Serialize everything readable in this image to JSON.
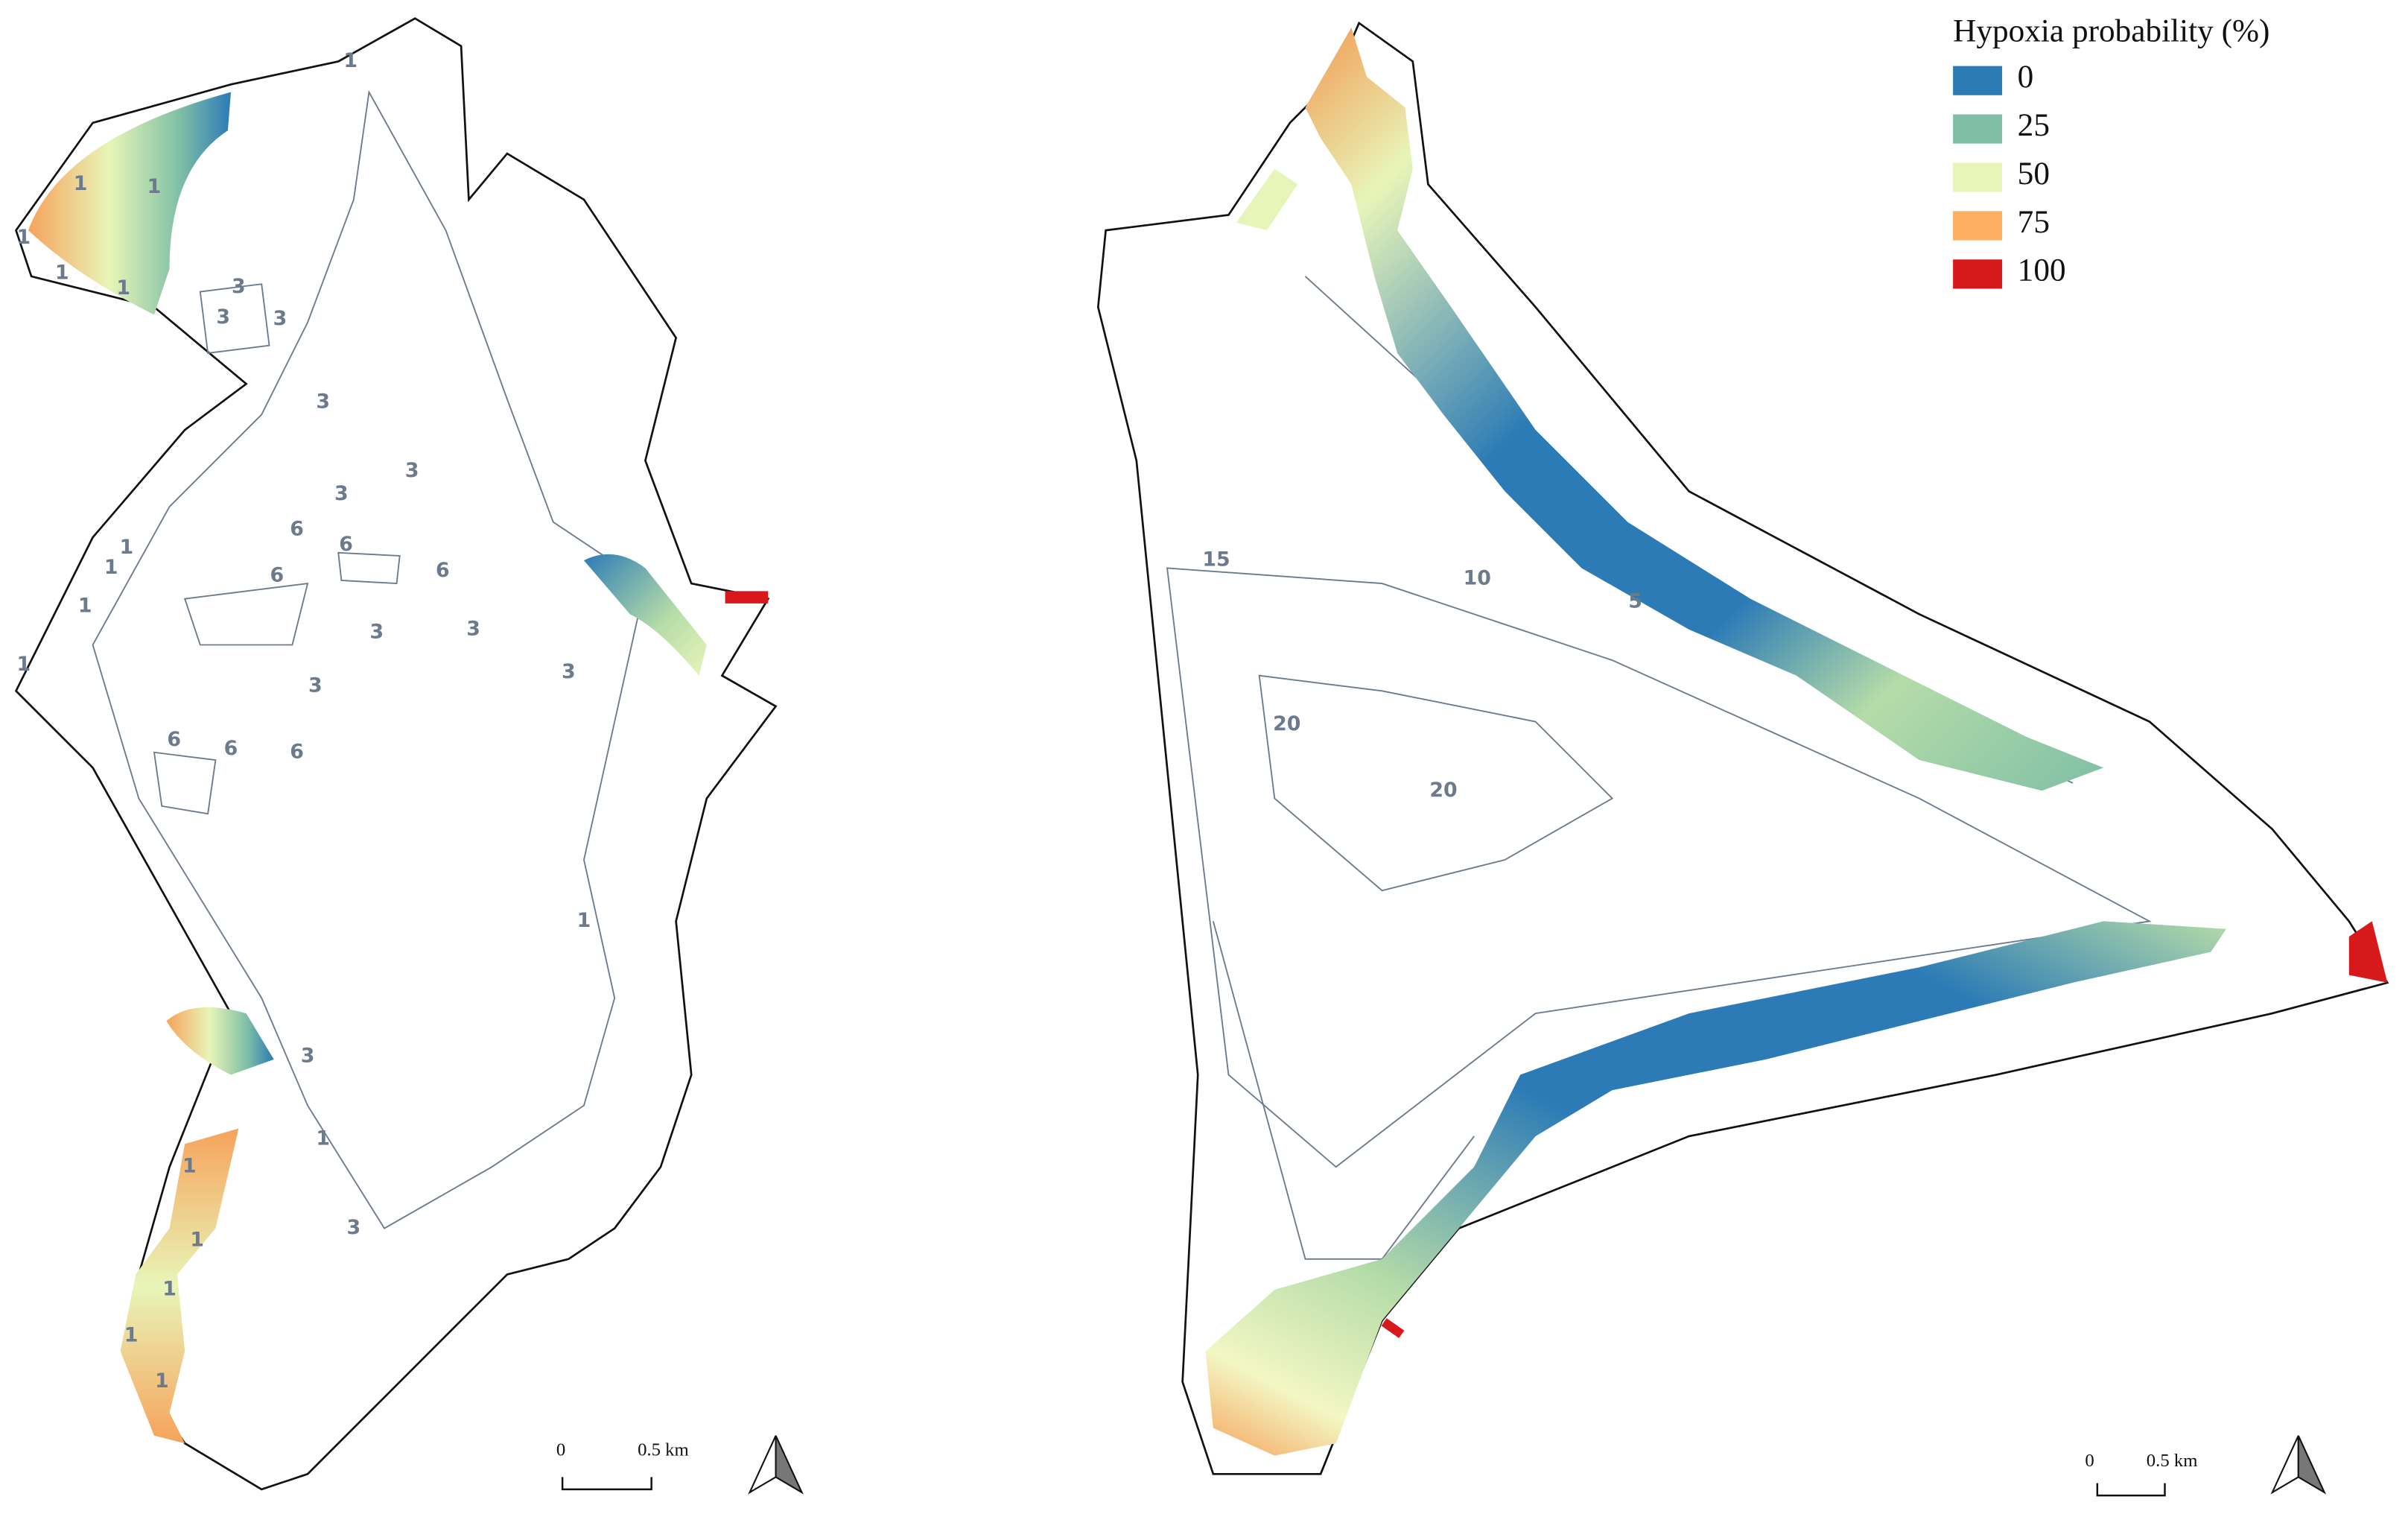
{
  "map": {
    "legend": {
      "title": "Hypoxia probability (%)",
      "items": [
        {
          "label": "0",
          "color": "#2c7bb6"
        },
        {
          "label": "25",
          "color": "#7fbfa6"
        },
        {
          "label": "50",
          "color": "#e8f5b8"
        },
        {
          "label": "75",
          "color": "#fdae61"
        },
        {
          "label": "100",
          "color": "#d7191c"
        }
      ]
    },
    "contour_labels": {
      "left": [
        "1",
        "1",
        "1",
        "1",
        "1",
        "1",
        "1",
        "1",
        "1",
        "1",
        "1",
        "1",
        "1",
        "1",
        "1",
        "1",
        "1",
        "3",
        "3",
        "3",
        "3",
        "3",
        "3",
        "3",
        "3",
        "3",
        "3",
        "3",
        "3",
        "6",
        "6",
        "6",
        "6",
        "6",
        "6",
        "6"
      ],
      "right": [
        "15",
        "10",
        "5",
        "20",
        "20"
      ]
    },
    "scale_bars": [
      {
        "start": "0",
        "end": "0.5 km"
      },
      {
        "start": "0",
        "end": "0.5 km"
      }
    ]
  }
}
